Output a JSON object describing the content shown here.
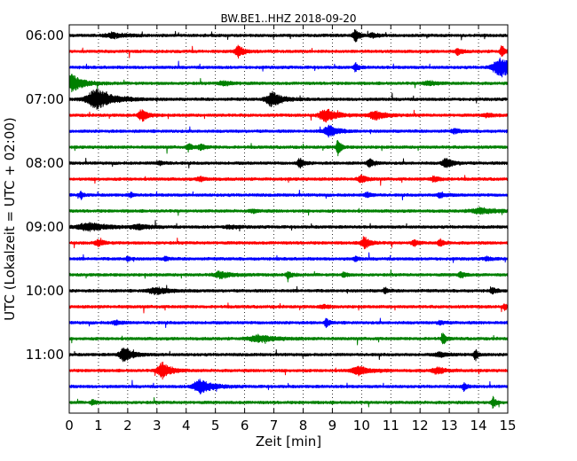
{
  "chart_data": {
    "type": "line",
    "title": "BW.BE1..HHZ 2018-09-20",
    "xlabel": "Zeit  [min]",
    "ylabel": "UTC (Lokalzeit = UTC + 02:00)",
    "xlim": [
      0,
      15
    ],
    "x_ticks": [
      0,
      1,
      2,
      3,
      4,
      5,
      6,
      7,
      8,
      9,
      10,
      11,
      12,
      13,
      14,
      15
    ],
    "x_tick_labels": [
      "0",
      "1",
      "2",
      "3",
      "4",
      "5",
      "6",
      "7",
      "8",
      "9",
      "10",
      "11",
      "12",
      "13",
      "14",
      "15"
    ],
    "y_tick_labels": [
      {
        "label": "06:00",
        "trace_index": 0
      },
      {
        "label": "07:00",
        "trace_index": 4
      },
      {
        "label": "08:00",
        "trace_index": 8
      },
      {
        "label": "09:00",
        "trace_index": 12
      },
      {
        "label": "10:00",
        "trace_index": 16
      },
      {
        "label": "11:00",
        "trace_index": 20
      }
    ],
    "trace_minutes": 15,
    "grid": {
      "vertical": true,
      "style": "dotted"
    },
    "series_colors": [
      "#000000",
      "#ff0000",
      "#0000ff",
      "#008000"
    ],
    "traces": [
      {
        "start": "06:00",
        "color": "#000000",
        "events": [
          {
            "t": 1.5,
            "amp": 0.25,
            "dur": 0.4
          },
          {
            "t": 9.8,
            "amp": 0.55,
            "dur": 0.15
          },
          {
            "t": 10.4,
            "amp": 0.2,
            "dur": 0.2
          }
        ]
      },
      {
        "start": "06:15",
        "color": "#ff0000",
        "events": [
          {
            "t": 5.8,
            "amp": 0.55,
            "dur": 0.2
          },
          {
            "t": 13.3,
            "amp": 0.3,
            "dur": 0.15
          },
          {
            "t": 14.8,
            "amp": 0.6,
            "dur": 0.1
          }
        ]
      },
      {
        "start": "06:30",
        "color": "#0000ff",
        "events": [
          {
            "t": 9.8,
            "amp": 0.45,
            "dur": 0.1
          },
          {
            "t": 14.8,
            "amp": 0.9,
            "dur": 0.5
          }
        ]
      },
      {
        "start": "06:45",
        "color": "#008000",
        "events": [
          {
            "t": 0.1,
            "amp": 0.85,
            "dur": 0.4
          },
          {
            "t": 5.3,
            "amp": 0.2,
            "dur": 0.3
          },
          {
            "t": 12.3,
            "amp": 0.2,
            "dur": 0.3
          }
        ]
      },
      {
        "start": "07:00",
        "color": "#000000",
        "events": [
          {
            "t": 0.95,
            "amp": 1.0,
            "dur": 0.6
          },
          {
            "t": 6.95,
            "amp": 0.75,
            "dur": 0.35
          }
        ]
      },
      {
        "start": "07:15",
        "color": "#ff0000",
        "events": [
          {
            "t": 2.5,
            "amp": 0.6,
            "dur": 0.2
          },
          {
            "t": 8.8,
            "amp": 0.6,
            "dur": 0.4
          },
          {
            "t": 10.5,
            "amp": 0.4,
            "dur": 0.4
          },
          {
            "t": 14.3,
            "amp": 0.15,
            "dur": 0.3
          }
        ]
      },
      {
        "start": "07:30",
        "color": "#0000ff",
        "events": [
          {
            "t": 8.9,
            "amp": 0.6,
            "dur": 0.3
          },
          {
            "t": 13.2,
            "amp": 0.2,
            "dur": 0.2
          }
        ]
      },
      {
        "start": "07:45",
        "color": "#008000",
        "events": [
          {
            "t": 4.1,
            "amp": 0.3,
            "dur": 0.15
          },
          {
            "t": 4.5,
            "amp": 0.3,
            "dur": 0.15
          },
          {
            "t": 9.2,
            "amp": 0.9,
            "dur": 0.1
          }
        ]
      },
      {
        "start": "08:00",
        "color": "#000000",
        "events": [
          {
            "t": 3.1,
            "amp": 0.15,
            "dur": 0.2
          },
          {
            "t": 7.9,
            "amp": 0.45,
            "dur": 0.15
          },
          {
            "t": 10.3,
            "amp": 0.45,
            "dur": 0.15
          },
          {
            "t": 12.9,
            "amp": 0.45,
            "dur": 0.25
          }
        ]
      },
      {
        "start": "08:15",
        "color": "#ff0000",
        "events": [
          {
            "t": 4.5,
            "amp": 0.2,
            "dur": 0.2
          },
          {
            "t": 10.0,
            "amp": 0.35,
            "dur": 0.2
          },
          {
            "t": 12.5,
            "amp": 0.25,
            "dur": 0.2
          }
        ]
      },
      {
        "start": "08:30",
        "color": "#0000ff",
        "events": [
          {
            "t": 0.4,
            "amp": 0.35,
            "dur": 0.1
          },
          {
            "t": 2.1,
            "amp": 0.25,
            "dur": 0.1
          },
          {
            "t": 10.2,
            "amp": 0.25,
            "dur": 0.15
          },
          {
            "t": 12.7,
            "amp": 0.25,
            "dur": 0.2
          }
        ]
      },
      {
        "start": "08:45",
        "color": "#008000",
        "events": [
          {
            "t": 6.3,
            "amp": 0.15,
            "dur": 0.2
          },
          {
            "t": 14.1,
            "amp": 0.25,
            "dur": 0.6
          }
        ]
      },
      {
        "start": "09:00",
        "color": "#000000",
        "events": [
          {
            "t": 0.7,
            "amp": 0.35,
            "dur": 0.7
          },
          {
            "t": 2.4,
            "amp": 0.2,
            "dur": 0.4
          },
          {
            "t": 5.5,
            "amp": 0.15,
            "dur": 0.3
          }
        ]
      },
      {
        "start": "09:15",
        "color": "#ff0000",
        "events": [
          {
            "t": 1.0,
            "amp": 0.3,
            "dur": 0.2
          },
          {
            "t": 10.1,
            "amp": 0.6,
            "dur": 0.2
          },
          {
            "t": 11.8,
            "amp": 0.3,
            "dur": 0.15
          },
          {
            "t": 12.7,
            "amp": 0.3,
            "dur": 0.15
          }
        ]
      },
      {
        "start": "09:30",
        "color": "#0000ff",
        "events": [
          {
            "t": 2.0,
            "amp": 0.25,
            "dur": 0.1
          },
          {
            "t": 3.3,
            "amp": 0.25,
            "dur": 0.1
          },
          {
            "t": 9.8,
            "amp": 0.25,
            "dur": 0.1
          },
          {
            "t": 14.3,
            "amp": 0.15,
            "dur": 0.2
          }
        ]
      },
      {
        "start": "09:45",
        "color": "#008000",
        "events": [
          {
            "t": 5.2,
            "amp": 0.3,
            "dur": 0.4
          },
          {
            "t": 7.5,
            "amp": 0.3,
            "dur": 0.15
          },
          {
            "t": 9.4,
            "amp": 0.3,
            "dur": 0.1
          },
          {
            "t": 13.4,
            "amp": 0.3,
            "dur": 0.15
          }
        ]
      },
      {
        "start": "10:00",
        "color": "#000000",
        "events": [
          {
            "t": 3.0,
            "amp": 0.3,
            "dur": 0.5
          },
          {
            "t": 10.8,
            "amp": 0.3,
            "dur": 0.1
          },
          {
            "t": 14.5,
            "amp": 0.25,
            "dur": 0.15
          }
        ]
      },
      {
        "start": "10:15",
        "color": "#ff0000",
        "events": [
          {
            "t": 8.7,
            "amp": 0.15,
            "dur": 0.2
          },
          {
            "t": 14.9,
            "amp": 0.3,
            "dur": 0.1
          }
        ]
      },
      {
        "start": "10:30",
        "color": "#0000ff",
        "events": [
          {
            "t": 1.6,
            "amp": 0.2,
            "dur": 0.2
          },
          {
            "t": 8.8,
            "amp": 0.45,
            "dur": 0.1
          },
          {
            "t": 12.7,
            "amp": 0.2,
            "dur": 0.15
          }
        ]
      },
      {
        "start": "10:45",
        "color": "#008000",
        "events": [
          {
            "t": 6.5,
            "amp": 0.3,
            "dur": 0.6
          },
          {
            "t": 12.8,
            "amp": 0.6,
            "dur": 0.1
          }
        ]
      },
      {
        "start": "11:00",
        "color": "#000000",
        "events": [
          {
            "t": 1.9,
            "amp": 0.7,
            "dur": 0.3
          },
          {
            "t": 13.9,
            "amp": 0.55,
            "dur": 0.1
          },
          {
            "t": 12.7,
            "amp": 0.2,
            "dur": 0.3
          }
        ]
      },
      {
        "start": "11:15",
        "color": "#ff0000",
        "events": [
          {
            "t": 3.2,
            "amp": 0.8,
            "dur": 0.3
          },
          {
            "t": 9.9,
            "amp": 0.4,
            "dur": 0.4
          },
          {
            "t": 12.6,
            "amp": 0.3,
            "dur": 0.3
          }
        ]
      },
      {
        "start": "11:30",
        "color": "#0000ff",
        "events": [
          {
            "t": 4.5,
            "amp": 0.75,
            "dur": 0.4
          },
          {
            "t": 13.5,
            "amp": 0.4,
            "dur": 0.1
          }
        ]
      },
      {
        "start": "11:45",
        "color": "#008000",
        "events": [
          {
            "t": 0.8,
            "amp": 0.3,
            "dur": 0.1
          },
          {
            "t": 14.5,
            "amp": 0.55,
            "dur": 0.1
          }
        ]
      }
    ]
  }
}
